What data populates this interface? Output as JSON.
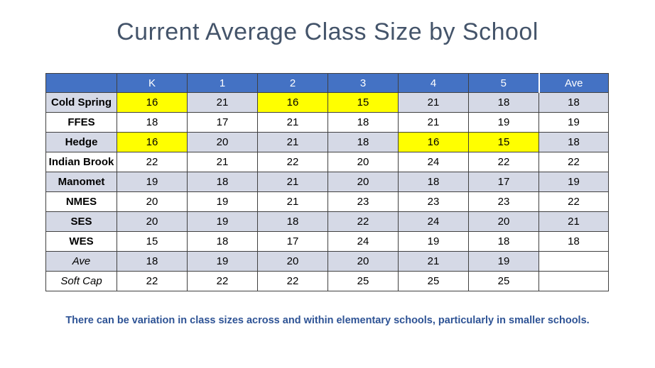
{
  "title": "Current Average Class Size by School",
  "footnote": "There can be variation in class sizes across and within elementary schools, particularly in smaller schools.",
  "colors": {
    "header_bg": "#4472C4",
    "band_bg": "#D5D9E6",
    "highlight_bg": "#FFFF00",
    "title_color": "#44546A",
    "footnote_color": "#2E5395",
    "border_color": "#404040"
  },
  "chart_data": {
    "type": "table",
    "title": "Current Average Class Size by School",
    "columns": [
      "",
      "K",
      "1",
      "2",
      "3",
      "4",
      "5",
      "Ave"
    ],
    "rows": [
      {
        "label": "Cold Spring",
        "italic": false,
        "values": [
          "16",
          "21",
          "16",
          "15",
          "21",
          "18",
          "18"
        ],
        "highlights": [
          0,
          2,
          3
        ]
      },
      {
        "label": "FFES",
        "italic": false,
        "values": [
          "18",
          "17",
          "21",
          "18",
          "21",
          "19",
          "19"
        ],
        "highlights": []
      },
      {
        "label": "Hedge",
        "italic": false,
        "values": [
          "16",
          "20",
          "21",
          "18",
          "16",
          "15",
          "18"
        ],
        "highlights": [
          0,
          4,
          5
        ]
      },
      {
        "label": "Indian Brook",
        "italic": false,
        "values": [
          "22",
          "21",
          "22",
          "20",
          "24",
          "22",
          "22"
        ],
        "highlights": []
      },
      {
        "label": "Manomet",
        "italic": false,
        "values": [
          "19",
          "18",
          "21",
          "20",
          "18",
          "17",
          "19"
        ],
        "highlights": []
      },
      {
        "label": "NMES",
        "italic": false,
        "values": [
          "20",
          "19",
          "21",
          "23",
          "23",
          "23",
          "22"
        ],
        "highlights": []
      },
      {
        "label": "SES",
        "italic": false,
        "values": [
          "20",
          "19",
          "18",
          "22",
          "24",
          "20",
          "21"
        ],
        "highlights": []
      },
      {
        "label": "WES",
        "italic": false,
        "values": [
          "15",
          "18",
          "17",
          "24",
          "19",
          "18",
          "18"
        ],
        "highlights": []
      },
      {
        "label": "Ave",
        "italic": true,
        "values": [
          "18",
          "19",
          "20",
          "20",
          "21",
          "19",
          ""
        ],
        "highlights": []
      },
      {
        "label": "Soft Cap",
        "italic": true,
        "values": [
          "22",
          "22",
          "22",
          "25",
          "25",
          "25",
          ""
        ],
        "highlights": []
      }
    ]
  }
}
